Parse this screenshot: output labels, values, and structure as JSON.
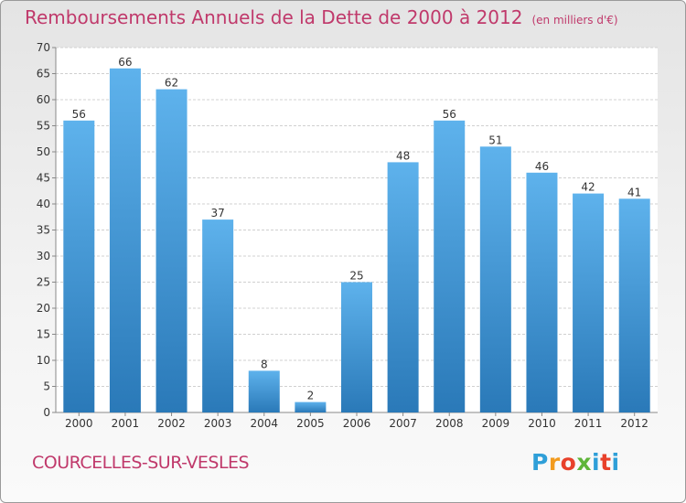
{
  "header": {
    "title": "Remboursements Annuels de la Dette de 2000 à 2012",
    "unit": "(en milliers d'€)"
  },
  "footer": {
    "commune": "COURCELLES-SUR-VESLES",
    "logo_text": "Proxiti"
  },
  "colors": {
    "title": "#c0396b",
    "bar_top": "#5eb2ec",
    "bar_bottom": "#2a79b8",
    "grid": "#d0d0d0"
  },
  "chart_data": {
    "type": "bar",
    "title": "Remboursements Annuels de la Dette de 2000 à 2012",
    "xlabel": "",
    "ylabel": "",
    "categories": [
      "2000",
      "2001",
      "2002",
      "2003",
      "2004",
      "2005",
      "2006",
      "2007",
      "2008",
      "2009",
      "2010",
      "2011",
      "2012"
    ],
    "values": [
      56,
      66,
      62,
      37,
      8,
      2,
      25,
      48,
      56,
      51,
      46,
      42,
      41
    ],
    "ylim": [
      0,
      70
    ],
    "yticks": [
      0,
      5,
      10,
      15,
      20,
      25,
      30,
      35,
      40,
      45,
      50,
      55,
      60,
      65,
      70
    ],
    "grid": true,
    "data_labels": true
  }
}
